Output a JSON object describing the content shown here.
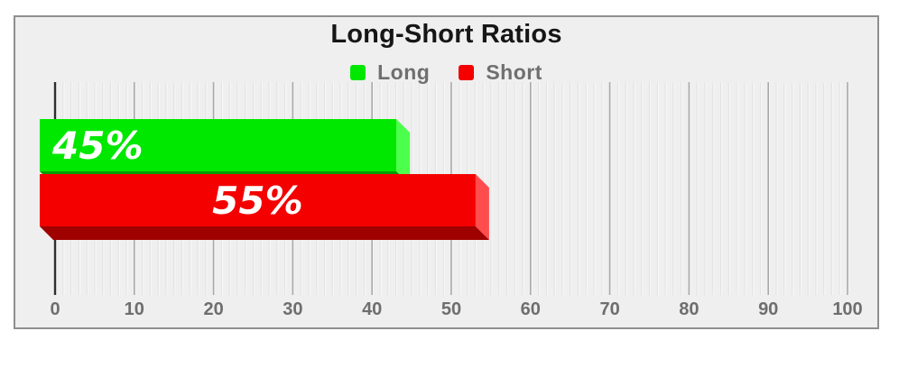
{
  "chart_data": {
    "type": "bar",
    "orientation": "horizontal",
    "style": "3d",
    "title": "Long-Short Ratios",
    "legend_position": "top",
    "grid": true,
    "series": [
      {
        "name": "Long",
        "value": 45,
        "label": "45%",
        "label_align": "left",
        "color_front": "#00e800",
        "color_side": "#4dff4d",
        "color_bottom": "#009c00"
      },
      {
        "name": "Short",
        "value": 55,
        "label": "55%",
        "label_align": "center",
        "color_front": "#f40000",
        "color_side": "#ff4d4d",
        "color_bottom": "#9f0000"
      }
    ],
    "axis": {
      "min": 0,
      "max": 100,
      "major_step": 10,
      "minor_step": 1
    },
    "x_ticks": [
      0,
      10,
      20,
      30,
      40,
      50,
      60,
      70,
      80,
      90,
      100
    ],
    "colors": {
      "bar_label_text": "#ffffff",
      "tick_text": "#6e6e6e",
      "title_text": "#161616",
      "legend_text": "#6f6f6f",
      "plot_background": "#efefef",
      "frame_border": "#8f8f8f",
      "grid_major": "#a9a9a9",
      "grid_minor": "#e2e2e2",
      "grid_minor_highlight": "#f8f8f8",
      "axis_line": "#2f2f2f"
    }
  }
}
